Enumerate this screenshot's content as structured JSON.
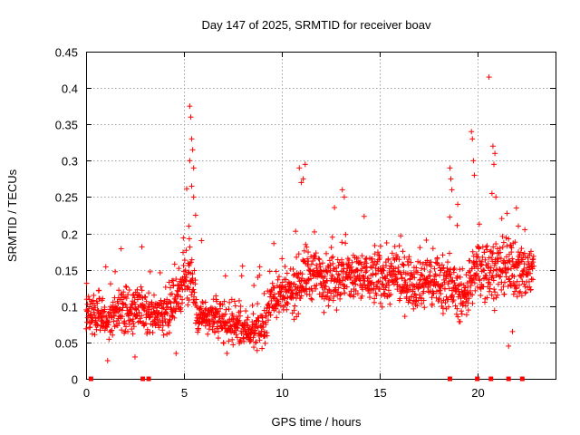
{
  "chart_data": {
    "type": "scatter",
    "title": "Day 147 of 2025, SRMTID for receiver boav",
    "xlabel": "GPS time / hours",
    "ylabel": "SRMTID / TECUs",
    "xlim": [
      0,
      24
    ],
    "ylim": [
      0,
      0.45
    ],
    "xticks": [
      0,
      5,
      10,
      15,
      20
    ],
    "xtick_labels": [
      "0",
      "5",
      "10",
      "15",
      "20"
    ],
    "yticks": [
      0,
      0.05,
      0.1,
      0.15,
      0.2,
      0.25,
      0.3,
      0.35,
      0.4,
      0.45
    ],
    "ytick_labels": [
      "0",
      "0.05",
      "0.1",
      "0.15",
      "0.2",
      "0.25",
      "0.3",
      "0.35",
      "0.4",
      "0.45"
    ],
    "grid": true,
    "marker": "+",
    "color": "#ff0000",
    "series": [
      {
        "name": "SRMTID",
        "trend": [
          [
            0.0,
            0.095
          ],
          [
            1.0,
            0.08
          ],
          [
            2.0,
            0.095
          ],
          [
            3.0,
            0.09
          ],
          [
            4.0,
            0.09
          ],
          [
            4.6,
            0.11
          ],
          [
            5.3,
            0.15
          ],
          [
            5.7,
            0.09
          ],
          [
            6.5,
            0.08
          ],
          [
            7.5,
            0.075
          ],
          [
            8.5,
            0.065
          ],
          [
            9.1,
            0.07
          ],
          [
            9.5,
            0.115
          ],
          [
            10.5,
            0.115
          ],
          [
            11.2,
            0.145
          ],
          [
            12.5,
            0.14
          ],
          [
            14.0,
            0.14
          ],
          [
            15.5,
            0.14
          ],
          [
            16.5,
            0.135
          ],
          [
            18.5,
            0.135
          ],
          [
            19.2,
            0.11
          ],
          [
            20.0,
            0.15
          ],
          [
            21.0,
            0.15
          ],
          [
            22.0,
            0.15
          ],
          [
            22.9,
            0.15
          ]
        ],
        "spikes": [
          [
            5.3,
            0.375
          ],
          [
            5.35,
            0.36
          ],
          [
            5.4,
            0.33
          ],
          [
            5.45,
            0.315
          ],
          [
            5.3,
            0.3
          ],
          [
            5.5,
            0.29
          ],
          [
            5.4,
            0.265
          ],
          [
            5.5,
            0.25
          ],
          [
            5.6,
            0.225
          ],
          [
            5.25,
            0.21
          ],
          [
            5.9,
            0.19
          ],
          [
            8.0,
            0.155
          ],
          [
            10.9,
            0.29
          ],
          [
            11.0,
            0.27
          ],
          [
            11.2,
            0.295
          ],
          [
            11.1,
            0.275
          ],
          [
            13.1,
            0.26
          ],
          [
            13.2,
            0.25
          ],
          [
            18.6,
            0.29
          ],
          [
            18.65,
            0.275
          ],
          [
            18.7,
            0.26
          ],
          [
            19.0,
            0.24
          ],
          [
            19.7,
            0.34
          ],
          [
            19.75,
            0.33
          ],
          [
            19.8,
            0.3
          ],
          [
            19.85,
            0.28
          ],
          [
            20.6,
            0.415
          ],
          [
            20.8,
            0.32
          ],
          [
            20.9,
            0.31
          ],
          [
            20.85,
            0.295
          ],
          [
            20.95,
            0.25
          ],
          [
            20.75,
            0.255
          ],
          [
            22.0,
            0.235
          ],
          [
            22.1,
            0.21
          ],
          [
            21.6,
            0.045
          ],
          [
            21.8,
            0.065
          ],
          [
            1.1,
            0.025
          ],
          [
            2.5,
            0.03
          ],
          [
            4.6,
            0.035
          ],
          [
            7.2,
            0.035
          ]
        ],
        "zero_values_x": [
          0.25,
          2.9,
          3.2,
          18.6,
          20.0,
          20.7,
          21.6,
          22.3
        ]
      }
    ]
  }
}
